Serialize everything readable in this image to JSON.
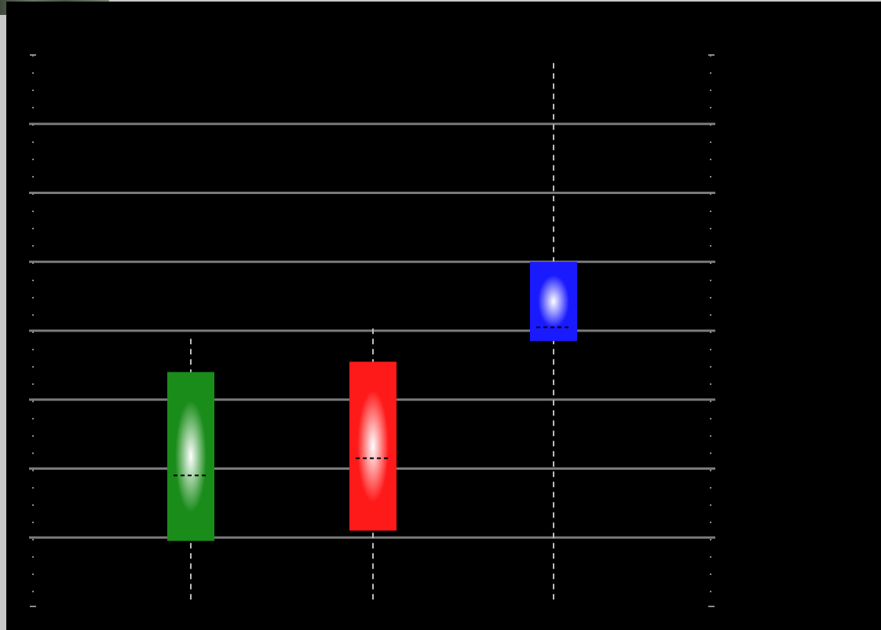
{
  "colors": {
    "background": "#000000",
    "gridline": "#7a7a7a",
    "whisker": "#bdbdbd",
    "median": "#000000"
  },
  "chart_data": {
    "type": "boxplot",
    "title": "",
    "xlabel": "",
    "ylabel": "",
    "grid": true,
    "ylim": [
      0,
      8
    ],
    "gridlines_y": [
      1,
      2,
      3,
      4,
      5,
      6,
      7
    ],
    "boxes": [
      {
        "color": "#1a8c1a",
        "whisker_low": 0.1,
        "q1": 0.95,
        "median": 1.9,
        "q3": 3.4,
        "whisker_high": 3.9
      },
      {
        "color": "#ff1a1a",
        "whisker_low": 0.1,
        "q1": 1.1,
        "median": 2.15,
        "q3": 3.55,
        "whisker_high": 4.1
      },
      {
        "color": "#1a1aff",
        "whisker_low": 0.1,
        "q1": 3.85,
        "median": 4.05,
        "q3": 5.0,
        "whisker_high": 7.9
      }
    ]
  }
}
